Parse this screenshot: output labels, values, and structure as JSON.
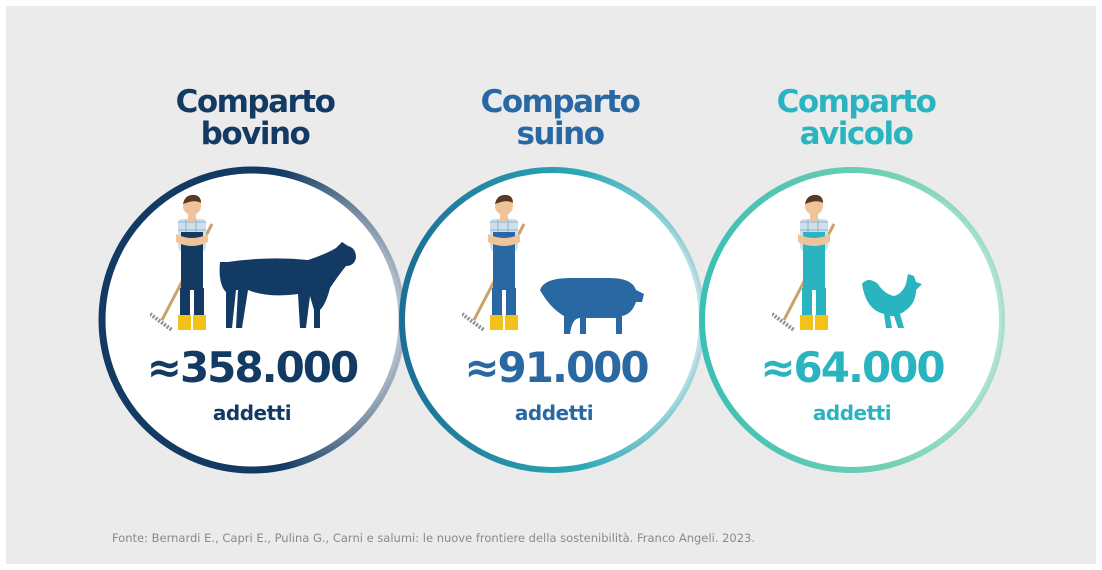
{
  "panels": [
    {
      "title": [
        "Comparto",
        "bovino"
      ],
      "value": "≈358.000",
      "unit": "addetti"
    },
    {
      "title": [
        "Comparto",
        "suino"
      ],
      "value": "≈91.000",
      "unit": "addetti"
    },
    {
      "title": [
        "Comparto",
        "avicolo"
      ],
      "value": "≈64.000",
      "unit": "addetti"
    }
  ],
  "source": "Fonte: Bernardi E., Capri E., Pulina G., Carni e salumi: le nuove frontiere della sostenibilità. Franco Angeli. 2023."
}
